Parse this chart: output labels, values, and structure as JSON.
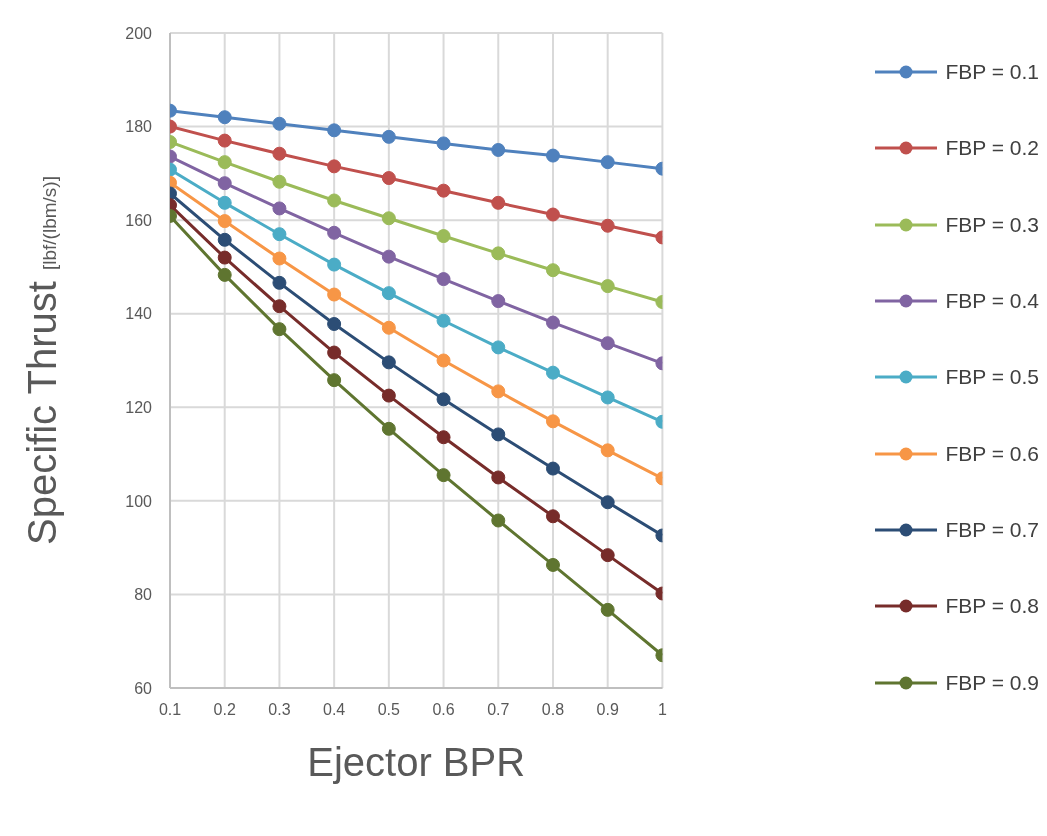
{
  "chart_data": {
    "type": "line",
    "xlabel": "Ejector BPR",
    "ylabel": "Specific Thrust [lbf/(lbm/s)]",
    "x": [
      0.1,
      0.2,
      0.3,
      0.4,
      0.5,
      0.6,
      0.7,
      0.8,
      0.9,
      1
    ],
    "xlim": [
      0.1,
      1
    ],
    "xticks": [
      {
        "value": 0.1,
        "label": "0.1"
      },
      {
        "value": 0.2,
        "label": "0.2"
      },
      {
        "value": 0.3,
        "label": "0.3"
      },
      {
        "value": 0.4,
        "label": "0.4"
      },
      {
        "value": 0.5,
        "label": "0.5"
      },
      {
        "value": 0.6,
        "label": "0.6"
      },
      {
        "value": 0.7,
        "label": "0.7"
      },
      {
        "value": 0.8,
        "label": "0.8"
      },
      {
        "value": 0.9,
        "label": "0.9"
      },
      1
    ],
    "ylim": [
      60,
      200
    ],
    "yticks": [
      60,
      80,
      100,
      120,
      140,
      160,
      180,
      200
    ],
    "grid": true,
    "legend": "right",
    "marker": "circle",
    "line_style": "solid",
    "series": [
      {
        "name": "FBP = 0.1",
        "color": "#4f81bd",
        "values": [
          183.4,
          182,
          180.6,
          179.2,
          177.8,
          176.4,
          175,
          173.8,
          172.4,
          171
        ]
      },
      {
        "name": "FBP = 0.2",
        "color": "#c0504d",
        "values": [
          180,
          177,
          174.2,
          171.5,
          169,
          166.3,
          163.7,
          161.2,
          158.8,
          156.3
        ]
      },
      {
        "name": "FBP = 0.3",
        "color": "#9bbb59",
        "values": [
          176.7,
          172.4,
          168.2,
          164.2,
          160.4,
          156.6,
          152.9,
          149.3,
          145.9,
          142.5
        ]
      },
      {
        "name": "FBP = 0.4",
        "color": "#8064a2",
        "values": [
          173.6,
          167.9,
          162.5,
          157.3,
          152.2,
          147.4,
          142.7,
          138.1,
          133.7,
          129.4
        ]
      },
      {
        "name": "FBP = 0.5",
        "color": "#4bacc6",
        "values": [
          170.8,
          163.7,
          157,
          150.5,
          144.4,
          138.5,
          132.8,
          127.4,
          122.1,
          116.9
        ]
      },
      {
        "name": "FBP = 0.6",
        "color": "#f79646",
        "values": [
          168,
          159.8,
          151.8,
          144.1,
          137,
          130,
          123.4,
          117,
          110.8,
          104.8
        ]
      },
      {
        "name": "FBP = 0.7",
        "color": "#2c4d75",
        "values": [
          165.7,
          155.8,
          146.6,
          137.8,
          129.6,
          121.7,
          114.2,
          106.9,
          99.7,
          92.6
        ]
      },
      {
        "name": "FBP = 0.8",
        "color": "#772c2a",
        "values": [
          163.2,
          152,
          141.6,
          131.7,
          122.5,
          113.6,
          105,
          96.7,
          88.4,
          80.2
        ]
      },
      {
        "name": "FBP = 0.9",
        "color": "#5f7530",
        "values": [
          160.9,
          148.3,
          136.7,
          125.8,
          115.4,
          105.5,
          95.8,
          86.3,
          76.7,
          67
        ]
      }
    ]
  }
}
